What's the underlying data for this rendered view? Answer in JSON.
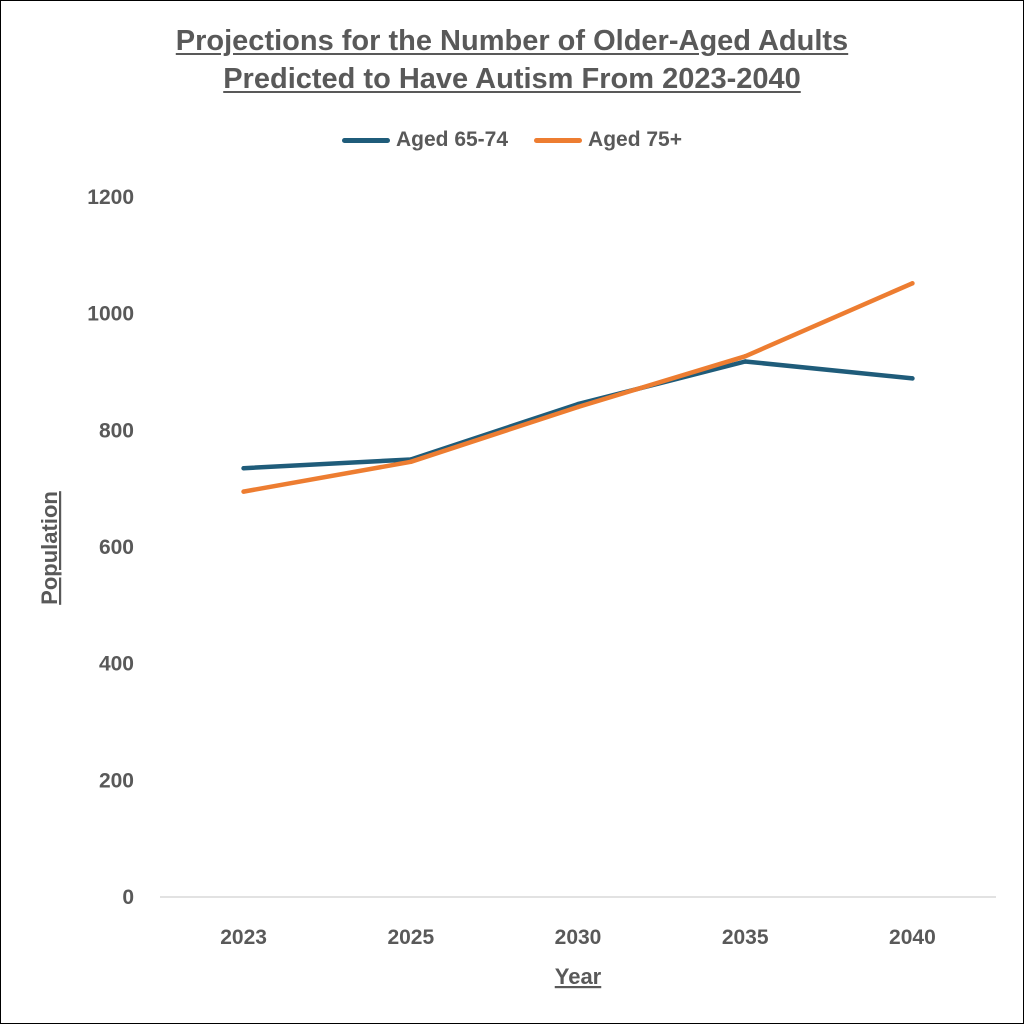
{
  "chart_data": {
    "type": "line",
    "title_line1": "Projections for the Number of Older-Aged Adults",
    "title_line2": "Predicted to Have Autism From 2023-2040",
    "xlabel": "Year",
    "ylabel": "Population",
    "categories": [
      "2023",
      "2025",
      "2030",
      "2035",
      "2040"
    ],
    "ylim": [
      0,
      1200
    ],
    "yticks": [
      0,
      200,
      400,
      600,
      800,
      1000,
      1200
    ],
    "grid": false,
    "legend_position": "top",
    "series": [
      {
        "name": "Aged 65-74",
        "color": "#1f5c7a",
        "values": [
          735,
          750,
          845,
          918,
          889
        ]
      },
      {
        "name": "Aged 75+",
        "color": "#ed7d31",
        "values": [
          695,
          746,
          840,
          927,
          1052
        ]
      }
    ]
  }
}
